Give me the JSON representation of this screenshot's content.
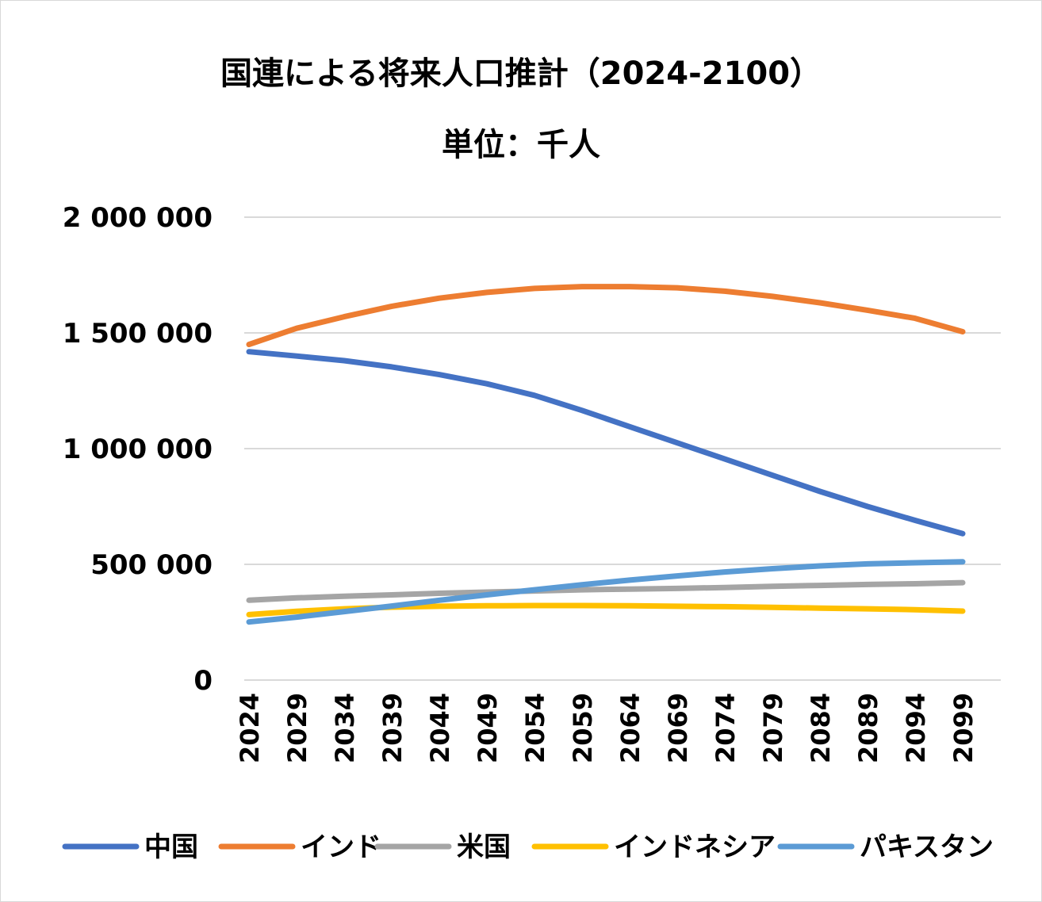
{
  "chart_data": {
    "type": "line",
    "title": "国連による将来人口推計（2024-2100）",
    "subtitle": "単位：千人",
    "xlabel": "",
    "ylabel": "",
    "ylim": [
      0,
      2000000
    ],
    "yticks": [
      0,
      500000,
      1000000,
      1500000,
      2000000
    ],
    "ytick_labels": [
      "0",
      "500 000",
      "1 000 000",
      "1 500 000",
      "2 000 000"
    ],
    "x_tick_labels": [
      "2024",
      "2029",
      "2034",
      "2039",
      "2044",
      "2049",
      "2054",
      "2059",
      "2064",
      "2069",
      "2074",
      "2079",
      "2084",
      "2089",
      "2094",
      "2099"
    ],
    "x": [
      2024,
      2029,
      2034,
      2039,
      2044,
      2049,
      2054,
      2059,
      2064,
      2069,
      2074,
      2079,
      2084,
      2089,
      2094,
      2099
    ],
    "grid": true,
    "legend_position": "bottom",
    "series": [
      {
        "name": "中国",
        "color": "#4472C4",
        "values": [
          1419000,
          1400000,
          1380000,
          1353000,
          1320000,
          1280000,
          1230000,
          1165000,
          1095000,
          1025000,
          955000,
          885000,
          815000,
          750000,
          690000,
          633000
        ]
      },
      {
        "name": "インド",
        "color": "#ED7D31",
        "values": [
          1450000,
          1520000,
          1570000,
          1615000,
          1650000,
          1675000,
          1692000,
          1700000,
          1700000,
          1695000,
          1680000,
          1658000,
          1630000,
          1598000,
          1563000,
          1505000
        ]
      },
      {
        "name": "米国",
        "color": "#A5A5A5",
        "values": [
          345000,
          355000,
          362000,
          368000,
          375000,
          380000,
          385000,
          390000,
          393000,
          396000,
          400000,
          405000,
          409000,
          413000,
          416000,
          421000
        ]
      },
      {
        "name": "インドネシア",
        "color": "#FFC000",
        "values": [
          283000,
          297000,
          308000,
          315000,
          319000,
          321000,
          322000,
          322000,
          321000,
          319000,
          317000,
          314000,
          311000,
          308000,
          304000,
          298000
        ]
      },
      {
        "name": "パキスタン",
        "color": "#5B9BD5",
        "values": [
          251000,
          272000,
          296000,
          320000,
          345000,
          368000,
          390000,
          412000,
          432000,
          450000,
          467000,
          481000,
          493000,
          502000,
          507000,
          511000
        ]
      }
    ]
  }
}
